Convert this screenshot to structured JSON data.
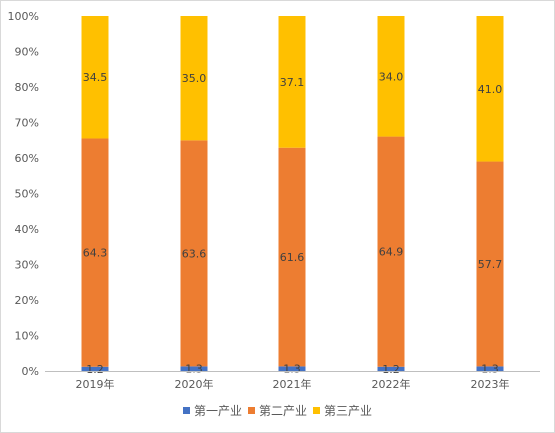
{
  "chart_data": {
    "type": "bar",
    "stacked": true,
    "percent_stacked": true,
    "categories": [
      "2019年",
      "2020年",
      "2021年",
      "2022年",
      "2023年"
    ],
    "series": [
      {
        "name": "第一产业",
        "color": "#4472C4",
        "values": [
          1.2,
          1.3,
          1.3,
          1.2,
          1.3
        ]
      },
      {
        "name": "第二产业",
        "color": "#ED7D31",
        "values": [
          64.3,
          63.6,
          61.6,
          64.9,
          57.7
        ]
      },
      {
        "name": "第三产业",
        "color": "#FFC000",
        "values": [
          34.5,
          35.0,
          37.1,
          34.0,
          41.0
        ]
      }
    ],
    "y_ticks": [
      "0%",
      "10%",
      "20%",
      "30%",
      "40%",
      "50%",
      "60%",
      "70%",
      "80%",
      "90%",
      "100%"
    ],
    "ylim": [
      0,
      100
    ],
    "data_labels": [
      [
        "1.2",
        "1.3",
        "1.3",
        "1.2",
        "1.3"
      ],
      [
        "64.3",
        "63.6",
        "61.6",
        "64.9",
        "57.7"
      ],
      [
        "34.5",
        "35.0",
        "37.1",
        "34.0",
        "41.0"
      ]
    ],
    "legend_position": "bottom",
    "grid": false
  }
}
